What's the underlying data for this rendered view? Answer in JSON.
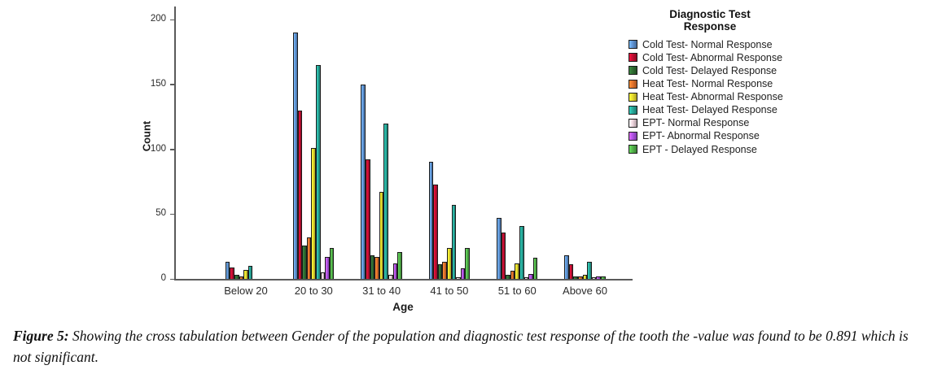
{
  "figure": {
    "caption_prefix": "Figure 5:",
    "caption_body": " Showing the cross tabulation between Gender of the population and diagnostic test response of the tooth the -value was found to be 0.891 which is not significant."
  },
  "chart_data": {
    "type": "bar",
    "title": "Diagnostic Test Response",
    "legend_title_lines": [
      "Diagnostic Test",
      "Response"
    ],
    "legend_position": "right",
    "xlabel": "Age",
    "ylabel": "Count",
    "ylim": [
      0,
      200
    ],
    "yticks": [
      0,
      50,
      100,
      150,
      200
    ],
    "grid": false,
    "categories": [
      "Below 20",
      "20 to 30",
      "31 to 40",
      "41 to 50",
      "51 to 60",
      "Above 60"
    ],
    "series": [
      {
        "name": "Cold Test- Normal Response",
        "color": "#6095D6",
        "values": [
          13,
          190,
          150,
          90,
          47,
          18
        ]
      },
      {
        "name": "Cold Test- Abnormal Response",
        "color": "#C40F33",
        "values": [
          9,
          130,
          92,
          73,
          36,
          11
        ]
      },
      {
        "name": "Cold Test- Delayed Response",
        "color": "#2F6E33",
        "values": [
          3,
          26,
          18,
          11,
          3,
          2
        ]
      },
      {
        "name": "Heat Test- Normal Response",
        "color": "#E5732C",
        "values": [
          2,
          32,
          17,
          13,
          6,
          2
        ]
      },
      {
        "name": "Heat Test- Abnormal Response",
        "color": "#E8DC2E",
        "values": [
          7,
          101,
          67,
          24,
          12,
          3
        ]
      },
      {
        "name": "Heat Test- Delayed Response",
        "color": "#28A99A",
        "values": [
          10,
          165,
          120,
          57,
          41,
          13
        ]
      },
      {
        "name": "EPT- Normal Response",
        "color": "#F0D7DF",
        "values": [
          0,
          5,
          3,
          1,
          1,
          1
        ]
      },
      {
        "name": "EPT- Abnormal Response",
        "color": "#B153E6",
        "values": [
          0,
          17,
          12,
          8,
          4,
          2
        ]
      },
      {
        "name": "EPT - Delayed Response",
        "color": "#53B44B",
        "values": [
          0,
          24,
          21,
          24,
          16,
          2
        ]
      }
    ]
  }
}
